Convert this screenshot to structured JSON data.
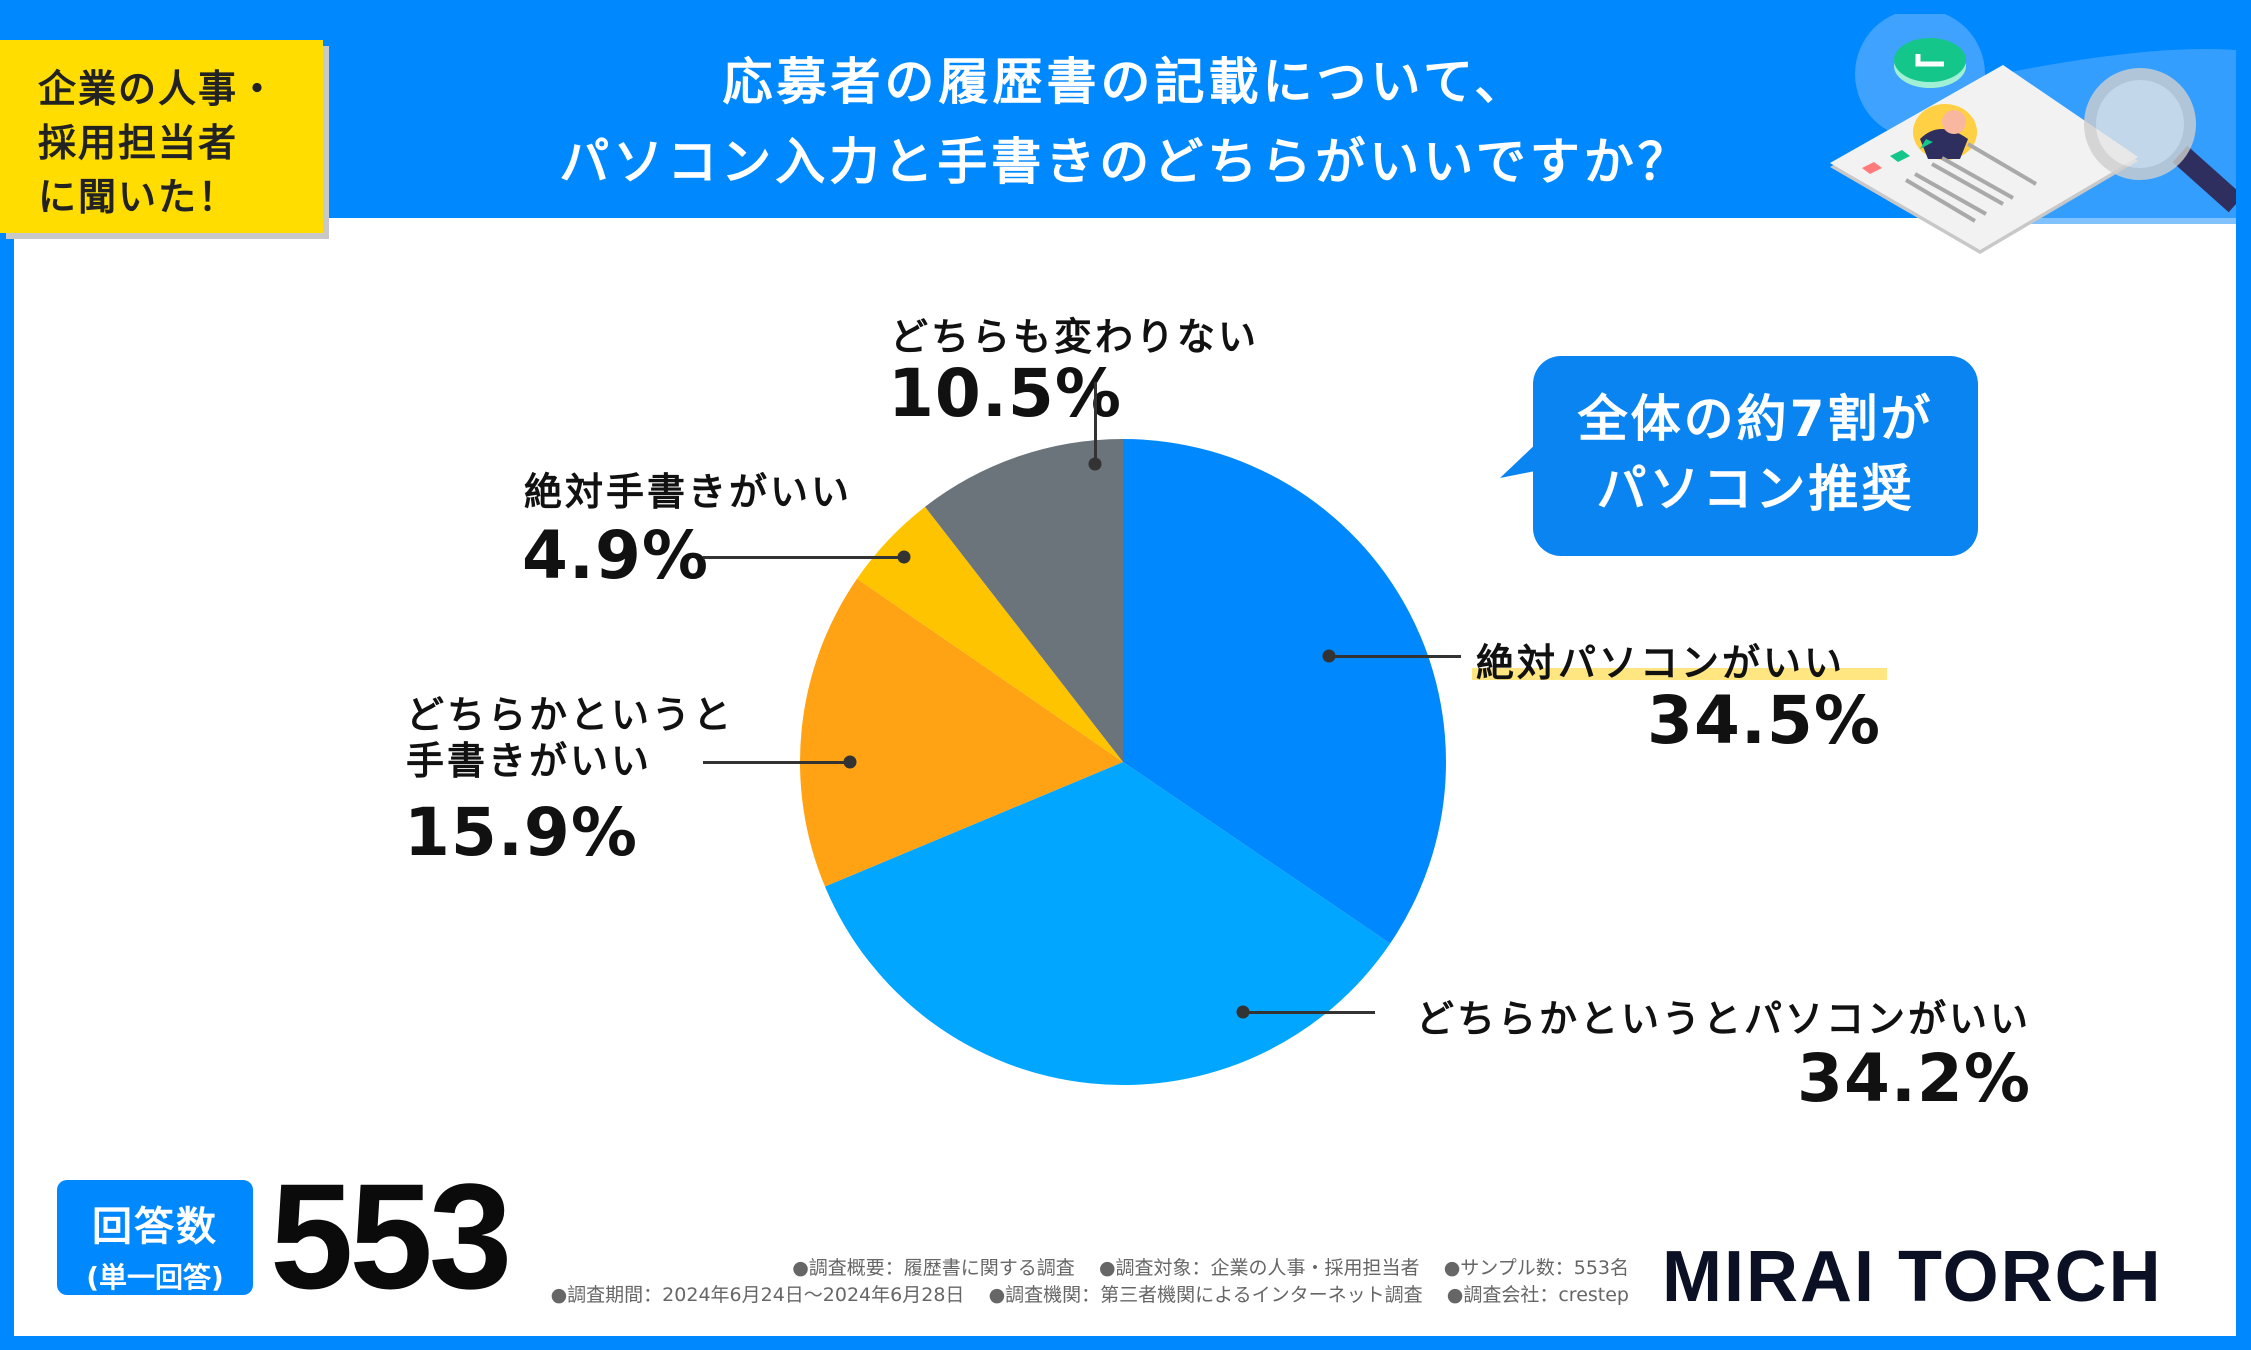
{
  "tag": {
    "lines": [
      "企業の人事・",
      "採用担当者",
      "に聞いた！"
    ]
  },
  "header": {
    "title_line1": "応募者の履歴書の記載について、",
    "title_line2": "パソコン入力と手書きのどちらがいいですか？"
  },
  "callout": {
    "line1": "全体の約7割が",
    "line2": "パソコン推奨"
  },
  "responses": {
    "label": "回答数",
    "sublabel": "(単一回答)",
    "count": "553"
  },
  "footer": {
    "line1": [
      "●調査概要：履歴書に関する調査",
      "●調査対象：企業の人事・採用担当者",
      "●サンプル数：553名"
    ],
    "line2": [
      "●調査期間：2024年6月24日～2024年6月28日",
      "●調査機関：第三者機関によるインターネット調査",
      "●調査会社：crestep"
    ]
  },
  "logo": {
    "text": "MIRAI TORCH"
  },
  "chart_data": {
    "type": "pie",
    "start": "top",
    "direction": "clockwise",
    "slices": [
      {
        "label": "絶対パソコンがいい",
        "value": 34.5,
        "display": "34.5%",
        "color": "#0088ff"
      },
      {
        "label": "どちらかというとパソコンがいい",
        "value": 34.2,
        "display": "34.2%",
        "color": "#00a6ff"
      },
      {
        "label": "どちらかというと手書きがいい",
        "value": 15.9,
        "display": "15.9%",
        "color": "#ffa214"
      },
      {
        "label": "絶対手書きがいい",
        "value": 4.9,
        "display": "4.9%",
        "color": "#ffc400"
      },
      {
        "label": "どちらも変わりない",
        "value": 10.5,
        "display": "10.5%",
        "color": "#6b737b"
      }
    ]
  }
}
